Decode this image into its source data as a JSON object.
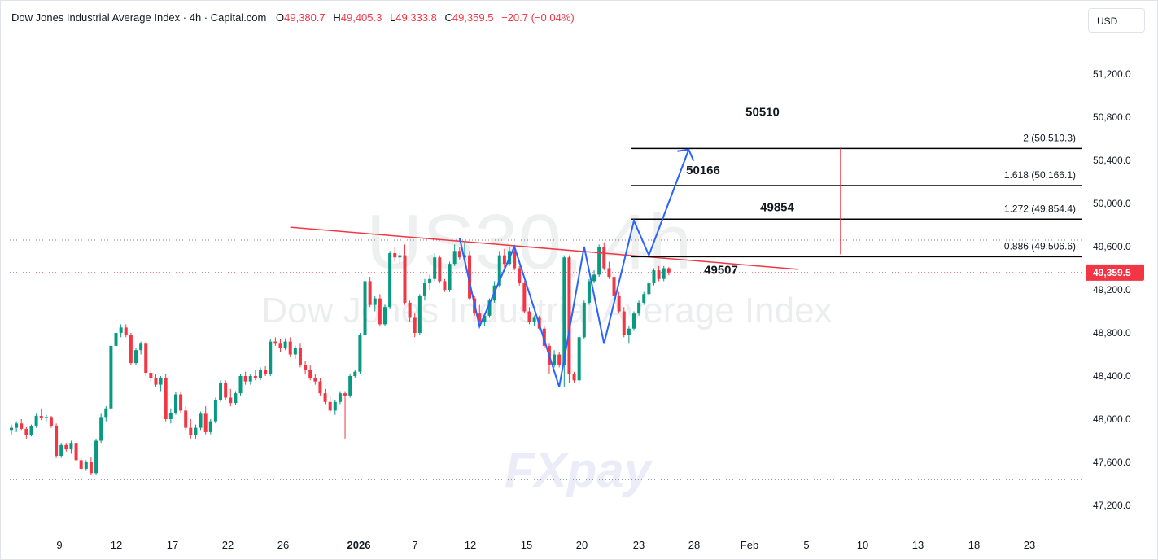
{
  "header": {
    "title": "Dow Jones Industrial Average Index · 4h · Capital.com",
    "open_label": "O",
    "open": "49,380.7",
    "high_label": "H",
    "high": "49,405.3",
    "low_label": "L",
    "low": "49,333.8",
    "close_label": "C",
    "close": "49,359.5",
    "change": "−20.7 (−0.04%)"
  },
  "currency": "USD",
  "watermark": {
    "symbol": "US30, 4h",
    "name": "Dow Jones Industrial Average Index",
    "logo_text": "FXpay"
  },
  "colors": {
    "up": "#089981",
    "down": "#f23645",
    "projection": "#2962ff",
    "trendline": "#f23645",
    "level": "#000000",
    "grid": "#e0e3eb"
  },
  "chart_data": {
    "type": "candlestick",
    "y_axis": {
      "ticks": [
        47200,
        47600,
        48000,
        48400,
        48800,
        49200,
        49600,
        50000,
        50400,
        50800,
        51200
      ],
      "tick_labels": [
        "47,200.0",
        "47,600.0",
        "48,000.0",
        "48,400.0",
        "48,800.0",
        "49,200.0",
        "49,600.0",
        "50,000.0",
        "50,400.0",
        "50,800.0",
        "51,200.0"
      ],
      "range": [
        46900,
        51600
      ]
    },
    "x_axis": {
      "tick_labels": [
        "9",
        "12",
        "17",
        "22",
        "26",
        "2026",
        "7",
        "12",
        "15",
        "20",
        "23",
        "28",
        "Feb",
        "5",
        "10",
        "13",
        "18",
        "23"
      ]
    },
    "last_price": {
      "value": 49359.5,
      "label": "49,359.5"
    },
    "fib_levels": [
      {
        "ratio_label": "2 (50,510.3)",
        "value": 50510.3,
        "annotation": "50510"
      },
      {
        "ratio_label": "1.618 (50,166.1)",
        "value": 50166.1,
        "annotation": "50166"
      },
      {
        "ratio_label": "1.272 (49,854.4)",
        "value": 49854.4,
        "annotation": "49854"
      },
      {
        "ratio_label": "0.886 (49,506.6)",
        "value": 49506.6,
        "annotation": "49507"
      }
    ],
    "dotted_levels": [
      49660,
      47440
    ],
    "trendline": {
      "start": {
        "x_index": 56,
        "price": 49780
      },
      "end": {
        "x_index": 158,
        "price": 49390
      }
    },
    "pattern_path": [
      {
        "x_index": 90,
        "price": 49680
      },
      {
        "x_index": 94,
        "price": 48860
      },
      {
        "x_index": 101,
        "price": 49600
      },
      {
        "x_index": 110,
        "price": 48300
      },
      {
        "x_index": 115,
        "price": 49600
      },
      {
        "x_index": 119,
        "price": 48700
      },
      {
        "x_index": 125,
        "price": 49840
      },
      {
        "x_index": 128,
        "price": 49520
      },
      {
        "x_index": 136,
        "price": 50500
      }
    ],
    "candles": [
      [
        47900,
        47950,
        47850,
        47920
      ],
      [
        47920,
        47980,
        47880,
        47960
      ],
      [
        47960,
        48000,
        47900,
        47910
      ],
      [
        47910,
        47930,
        47820,
        47850
      ],
      [
        47850,
        47950,
        47840,
        47940
      ],
      [
        47940,
        48050,
        47920,
        48030
      ],
      [
        48030,
        48100,
        47990,
        48010
      ],
      [
        48010,
        48040,
        47980,
        48020
      ],
      [
        48020,
        48030,
        47920,
        47940
      ],
      [
        47940,
        47960,
        47640,
        47660
      ],
      [
        47660,
        47780,
        47640,
        47760
      ],
      [
        47760,
        47780,
        47700,
        47720
      ],
      [
        47720,
        47800,
        47680,
        47780
      ],
      [
        47780,
        47790,
        47600,
        47620
      ],
      [
        47620,
        47640,
        47520,
        47540
      ],
      [
        47540,
        47620,
        47520,
        47600
      ],
      [
        47600,
        47650,
        47480,
        47500
      ],
      [
        47500,
        47820,
        47480,
        47800
      ],
      [
        47800,
        48050,
        47780,
        48020
      ],
      [
        48020,
        48120,
        47980,
        48100
      ],
      [
        48100,
        48700,
        48080,
        48680
      ],
      [
        48680,
        48830,
        48650,
        48800
      ],
      [
        48800,
        48880,
        48760,
        48850
      ],
      [
        48850,
        48880,
        48760,
        48780
      ],
      [
        48780,
        48800,
        48500,
        48520
      ],
      [
        48520,
        48660,
        48500,
        48640
      ],
      [
        48640,
        48720,
        48600,
        48700
      ],
      [
        48700,
        48720,
        48400,
        48430
      ],
      [
        48430,
        48470,
        48350,
        48380
      ],
      [
        48380,
        48420,
        48300,
        48320
      ],
      [
        48320,
        48400,
        48260,
        48380
      ],
      [
        48380,
        48420,
        47980,
        48000
      ],
      [
        48000,
        48100,
        47960,
        48060
      ],
      [
        48060,
        48250,
        48040,
        48230
      ],
      [
        48230,
        48260,
        48060,
        48080
      ],
      [
        48080,
        48120,
        47900,
        47920
      ],
      [
        47920,
        48000,
        47820,
        47850
      ],
      [
        47850,
        47950,
        47820,
        47920
      ],
      [
        47920,
        48070,
        47900,
        48050
      ],
      [
        48050,
        48120,
        47860,
        47880
      ],
      [
        47880,
        48000,
        47860,
        47980
      ],
      [
        47980,
        48200,
        47960,
        48180
      ],
      [
        48180,
        48360,
        48160,
        48340
      ],
      [
        48340,
        48360,
        48180,
        48200
      ],
      [
        48200,
        48280,
        48120,
        48150
      ],
      [
        48150,
        48260,
        48130,
        48240
      ],
      [
        48240,
        48420,
        48220,
        48400
      ],
      [
        48400,
        48440,
        48320,
        48350
      ],
      [
        48350,
        48420,
        48320,
        48400
      ],
      [
        48400,
        48460,
        48360,
        48380
      ],
      [
        48380,
        48480,
        48360,
        48460
      ],
      [
        48460,
        48490,
        48400,
        48420
      ],
      [
        48420,
        48740,
        48400,
        48720
      ],
      [
        48720,
        48760,
        48680,
        48700
      ],
      [
        48700,
        48740,
        48620,
        48660
      ],
      [
        48660,
        48750,
        48640,
        48720
      ],
      [
        48720,
        48760,
        48580,
        48600
      ],
      [
        48600,
        48680,
        48560,
        48660
      ],
      [
        48660,
        48700,
        48480,
        48500
      ],
      [
        48500,
        48540,
        48420,
        48460
      ],
      [
        48460,
        48500,
        48360,
        48380
      ],
      [
        48380,
        48420,
        48320,
        48350
      ],
      [
        48350,
        48380,
        48220,
        48240
      ],
      [
        48240,
        48280,
        48140,
        48160
      ],
      [
        48160,
        48220,
        48060,
        48080
      ],
      [
        48080,
        48180,
        48040,
        48160
      ],
      [
        48160,
        48260,
        48140,
        48240
      ],
      [
        48240,
        48260,
        47820,
        48220
      ],
      [
        48220,
        48420,
        48200,
        48400
      ],
      [
        48400,
        48460,
        48380,
        48440
      ],
      [
        48440,
        48800,
        48420,
        48780
      ],
      [
        48780,
        49300,
        48760,
        49280
      ],
      [
        49280,
        49320,
        49040,
        49060
      ],
      [
        49060,
        49140,
        49000,
        49120
      ],
      [
        49120,
        49160,
        48860,
        48880
      ],
      [
        48880,
        49060,
        48860,
        49040
      ],
      [
        49040,
        49560,
        49020,
        49540
      ],
      [
        49540,
        49600,
        49460,
        49500
      ],
      [
        49500,
        49560,
        49440,
        49520
      ],
      [
        49520,
        49620,
        49060,
        49080
      ],
      [
        49080,
        49100,
        48900,
        48940
      ],
      [
        48940,
        48980,
        48760,
        48800
      ],
      [
        48800,
        49160,
        48780,
        49140
      ],
      [
        49140,
        49300,
        49100,
        49260
      ],
      [
        49260,
        49340,
        49200,
        49300
      ],
      [
        49300,
        49540,
        49280,
        49500
      ],
      [
        49500,
        49520,
        49260,
        49280
      ],
      [
        49280,
        49300,
        49180,
        49200
      ],
      [
        49200,
        49460,
        49180,
        49440
      ],
      [
        49440,
        49620,
        49420,
        49560
      ],
      [
        49560,
        49600,
        49480,
        49500
      ],
      [
        49500,
        49640,
        49460,
        49520
      ],
      [
        49520,
        49560,
        49100,
        49120
      ],
      [
        49120,
        49140,
        48960,
        48980
      ],
      [
        48980,
        49060,
        48880,
        48900
      ],
      [
        48900,
        48980,
        48860,
        48960
      ],
      [
        48960,
        49120,
        48940,
        49100
      ],
      [
        49100,
        49280,
        49080,
        49240
      ],
      [
        49240,
        49560,
        49220,
        49520
      ],
      [
        49520,
        49580,
        49400,
        49440
      ],
      [
        49440,
        49600,
        49420,
        49560
      ],
      [
        49560,
        49580,
        49380,
        49400
      ],
      [
        49400,
        49420,
        49240,
        49260
      ],
      [
        49260,
        49280,
        48980,
        49000
      ],
      [
        49000,
        49040,
        48880,
        48900
      ],
      [
        48900,
        48960,
        48860,
        48940
      ],
      [
        48940,
        48960,
        48820,
        48840
      ],
      [
        48840,
        48860,
        48660,
        48680
      ],
      [
        48680,
        48700,
        48420,
        48500
      ],
      [
        48500,
        48640,
        48480,
        48600
      ],
      [
        48600,
        48620,
        48480,
        48500
      ],
      [
        48500,
        49520,
        48300,
        49500
      ],
      [
        49500,
        49520,
        48340,
        48420
      ],
      [
        48420,
        48440,
        48340,
        48360
      ],
      [
        48360,
        48780,
        48340,
        48760
      ],
      [
        48760,
        49100,
        48740,
        49080
      ],
      [
        49080,
        49300,
        49060,
        49280
      ],
      [
        49280,
        49380,
        49260,
        49340
      ],
      [
        49340,
        49620,
        49320,
        49600
      ],
      [
        49600,
        49640,
        49380,
        49400
      ],
      [
        49400,
        49460,
        49300,
        49320
      ],
      [
        49320,
        49360,
        49120,
        49140
      ],
      [
        49140,
        49180,
        48980,
        49000
      ],
      [
        49000,
        49040,
        48760,
        48780
      ],
      [
        48780,
        48860,
        48700,
        48840
      ],
      [
        48840,
        49000,
        48820,
        48980
      ],
      [
        48980,
        49100,
        48960,
        49080
      ],
      [
        49080,
        49180,
        49060,
        49160
      ],
      [
        49160,
        49280,
        49140,
        49260
      ],
      [
        49260,
        49400,
        49240,
        49380
      ],
      [
        49380,
        49420,
        49280,
        49300
      ],
      [
        49300,
        49420,
        49280,
        49400
      ],
      [
        49400,
        49410,
        49334,
        49360
      ]
    ]
  }
}
